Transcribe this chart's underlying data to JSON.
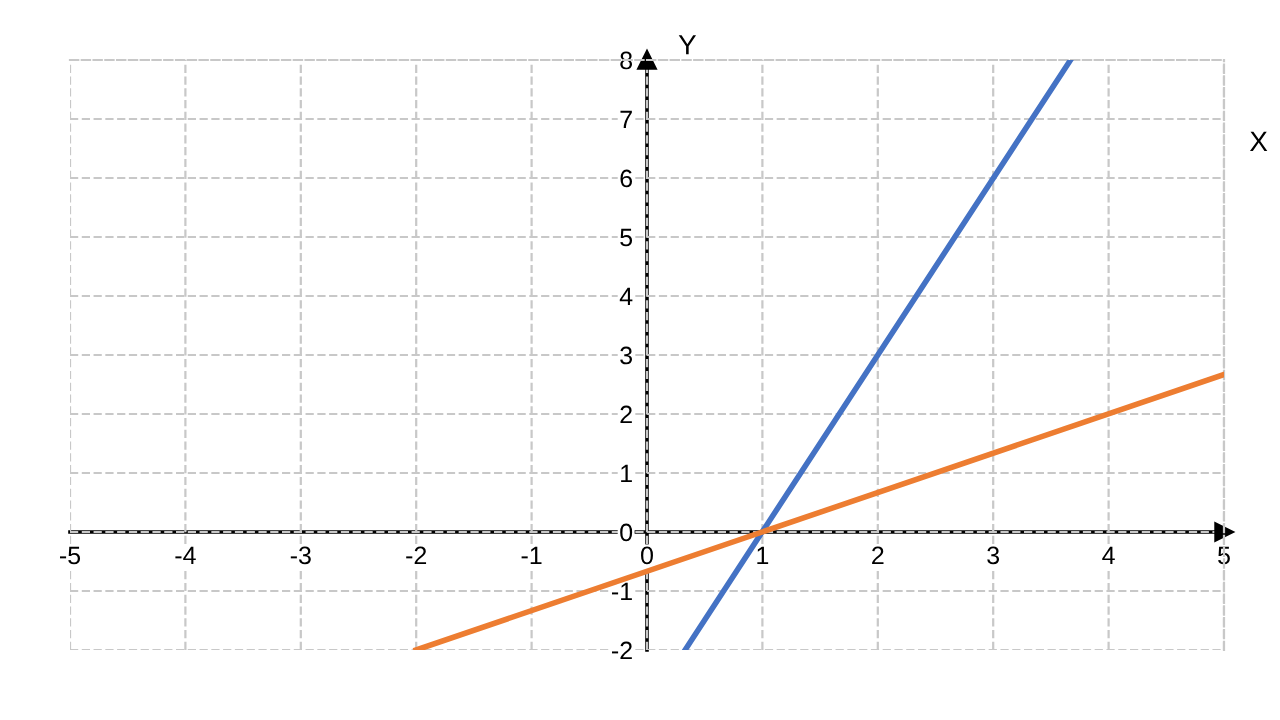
{
  "chart_data": {
    "type": "line",
    "xlabel": "X",
    "ylabel": "Y",
    "xlim": [
      -5,
      5
    ],
    "ylim": [
      -2,
      8
    ],
    "xticks": [
      -5,
      -4,
      -3,
      -2,
      -1,
      0,
      1,
      2,
      3,
      4,
      5
    ],
    "yticks": [
      -2,
      -1,
      0,
      1,
      2,
      3,
      4,
      5,
      6,
      7,
      8
    ],
    "grid": true,
    "legend": false,
    "marker": "none",
    "line_style": "solid",
    "series": [
      {
        "color": "#4472c4",
        "x": [
          0.33,
          3.67
        ],
        "values": [
          -2,
          8
        ]
      },
      {
        "color": "#ed7d31",
        "x": [
          -2,
          5
        ],
        "values": [
          -2,
          2.67
        ]
      }
    ]
  }
}
